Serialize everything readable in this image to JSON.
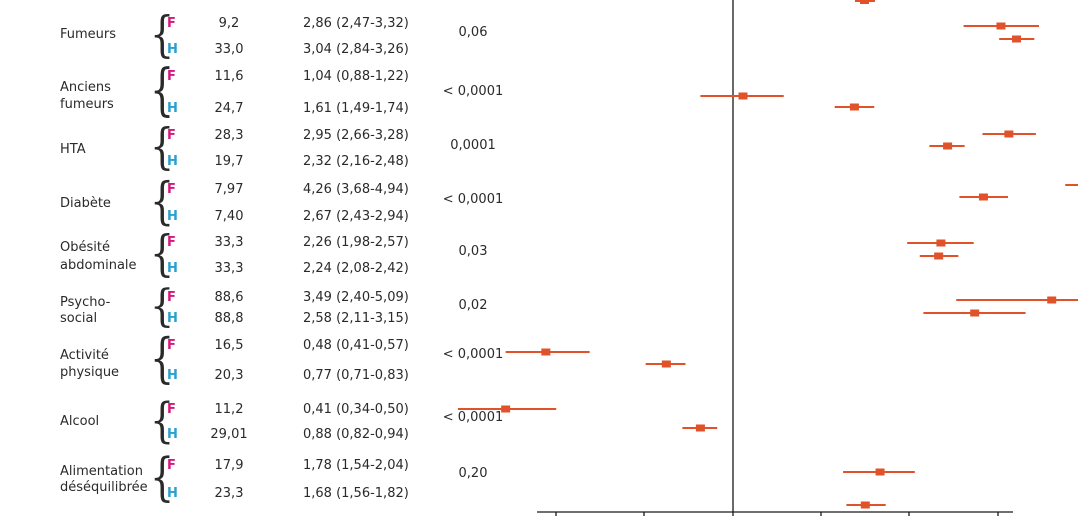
{
  "colors": {
    "female": "#d6157f",
    "male": "#2aa0cf",
    "marker": "#e0522a",
    "axis": "#1a1a1a"
  },
  "rows": [
    {
      "label_lines": [
        "Fumeurs"
      ],
      "F": {
        "sex": "F",
        "prevalence": "9,2",
        "or_text": "2,86 (2,47-3,32)"
      },
      "H": {
        "sex": "H",
        "prevalence": "33,0",
        "or_text": "3,04 (2,84-3,26)"
      },
      "p": "0,06"
    },
    {
      "label_lines": [
        "Anciens",
        "fumeurs"
      ],
      "F": {
        "sex": "F",
        "prevalence": "11,6",
        "or_text": "1,04 (0,88-1,22)"
      },
      "H": {
        "sex": "H",
        "prevalence": "24,7",
        "or_text": "1,61 (1,49-1,74)"
      },
      "p": "< 0,0001"
    },
    {
      "label_lines": [
        "HTA"
      ],
      "F": {
        "sex": "F",
        "prevalence": "28,3",
        "or_text": "2,95 (2,66-3,28)"
      },
      "H": {
        "sex": "H",
        "prevalence": "19,7",
        "or_text": "2,32 (2,16-2,48)"
      },
      "p": "0,0001"
    },
    {
      "label_lines": [
        "Diabète"
      ],
      "F": {
        "sex": "F",
        "prevalence": "7,97",
        "or_text": "4,26 (3,68-4,94)"
      },
      "H": {
        "sex": "H",
        "prevalence": "7,40",
        "or_text": "2,67 (2,43-2,94)"
      },
      "p": "< 0,0001"
    },
    {
      "label_lines": [
        "Obésité",
        "abdominale"
      ],
      "F": {
        "sex": "F",
        "prevalence": "33,3",
        "or_text": "2,26 (1,98-2,57)"
      },
      "H": {
        "sex": "H",
        "prevalence": "33,3",
        "or_text": "2,24 (2,08-2,42)"
      },
      "p": "0,03"
    },
    {
      "label_lines": [
        "Psycho-",
        "social"
      ],
      "F": {
        "sex": "F",
        "prevalence": "88,6",
        "or_text": "3,49 (2,40-5,09)"
      },
      "H": {
        "sex": "H",
        "prevalence": "88,8",
        "or_text": "2,58 (2,11-3,15)"
      },
      "p": "0,02"
    },
    {
      "label_lines": [
        "Activité",
        "physique"
      ],
      "F": {
        "sex": "F",
        "prevalence": "16,5",
        "or_text": "0,48 (0,41-0,57)"
      },
      "H": {
        "sex": "H",
        "prevalence": "20,3",
        "or_text": "0,77 (0,71-0,83)"
      },
      "p": "< 0,0001"
    },
    {
      "label_lines": [
        "Alcool"
      ],
      "F": {
        "sex": "F",
        "prevalence": "11,2",
        "or_text": "0,41 (0,34-0,50)"
      },
      "H": {
        "sex": "H",
        "prevalence": "29,01",
        "or_text": "0,88 (0,82-0,94)"
      },
      "p": "< 0,0001"
    },
    {
      "label_lines": [
        "Alimentation",
        "déséquilibrée"
      ],
      "F": {
        "sex": "F",
        "prevalence": "17,9",
        "or_text": "1,78 (1,54-2,04)"
      },
      "H": {
        "sex": "H",
        "prevalence": "23,3",
        "or_text": "1,68 (1,56-1,82)"
      },
      "p": "0,20"
    }
  ],
  "chart_data": {
    "type": "scatter",
    "x_scale": "log",
    "reference_line": 1,
    "xlim": [
      0.25,
      6.5
    ],
    "categories": [
      "Fumeurs",
      "Anciens fumeurs",
      "HTA",
      "Diabète",
      "Obésité abdominale",
      "Psycho-social",
      "Activité physique",
      "Alcool",
      "Alimentation déséquilibrée"
    ],
    "series": [
      {
        "name": "F",
        "points": [
          {
            "or": 2.86,
            "low": 2.47,
            "high": 3.32
          },
          {
            "or": 1.04,
            "low": 0.88,
            "high": 1.22
          },
          {
            "or": 2.95,
            "low": 2.66,
            "high": 3.28
          },
          {
            "or": 4.26,
            "low": 3.68,
            "high": 4.94
          },
          {
            "or": 2.26,
            "low": 1.98,
            "high": 2.57
          },
          {
            "or": 3.49,
            "low": 2.4,
            "high": 5.09
          },
          {
            "or": 0.48,
            "low": 0.41,
            "high": 0.57
          },
          {
            "or": 0.41,
            "low": 0.34,
            "high": 0.5
          },
          {
            "or": 1.78,
            "low": 1.54,
            "high": 2.04
          }
        ]
      },
      {
        "name": "H",
        "points": [
          {
            "or": 3.04,
            "low": 2.84,
            "high": 3.26
          },
          {
            "or": 1.61,
            "low": 1.49,
            "high": 1.74
          },
          {
            "or": 2.32,
            "low": 2.16,
            "high": 2.48
          },
          {
            "or": 2.67,
            "low": 2.43,
            "high": 2.94
          },
          {
            "or": 2.24,
            "low": 2.08,
            "high": 2.42
          },
          {
            "or": 2.58,
            "low": 2.11,
            "high": 3.15
          },
          {
            "or": 0.77,
            "low": 0.71,
            "high": 0.83
          },
          {
            "or": 0.88,
            "low": 0.82,
            "high": 0.94
          },
          {
            "or": 1.68,
            "low": 1.56,
            "high": 1.82
          }
        ]
      }
    ]
  }
}
